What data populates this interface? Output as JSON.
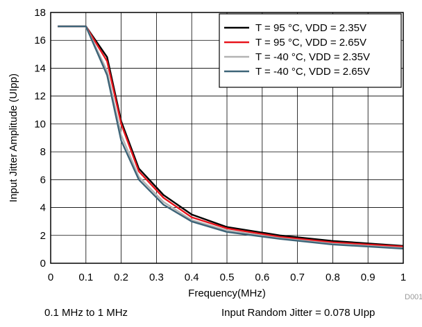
{
  "chart_data": {
    "type": "line",
    "xlabel": "Frequency(MHz)",
    "ylabel": "Input Jitter Amplitude (UIpp)",
    "xlim": [
      0,
      1
    ],
    "ylim": [
      0,
      18
    ],
    "x_ticks": [
      "0",
      "0.1",
      "0.2",
      "0.3",
      "0.4",
      "0.5",
      "0.6",
      "0.7",
      "0.8",
      "0.9",
      "1"
    ],
    "y_ticks": [
      "0",
      "2",
      "4",
      "6",
      "8",
      "10",
      "12",
      "14",
      "16",
      "18"
    ],
    "grid": true,
    "legend_position": "top-right",
    "figure_code": "D001",
    "series": [
      {
        "name": "T = 95 °C, VDD = 2.35V",
        "color": "#000000",
        "x": [
          0.02,
          0.1,
          0.16,
          0.2,
          0.25,
          0.32,
          0.4,
          0.5,
          0.65,
          0.8,
          1.0
        ],
        "y": [
          17,
          17,
          14.8,
          10.2,
          6.8,
          4.9,
          3.5,
          2.6,
          2.0,
          1.6,
          1.25
        ]
      },
      {
        "name": "T = 95 °C, VDD = 2.65V",
        "color": "#e8141c",
        "x": [
          0.02,
          0.1,
          0.16,
          0.2,
          0.25,
          0.32,
          0.4,
          0.5,
          0.65,
          0.8,
          1.0
        ],
        "y": [
          17,
          17,
          14.5,
          10.0,
          6.6,
          4.7,
          3.3,
          2.5,
          1.9,
          1.5,
          1.2
        ]
      },
      {
        "name": "T = -40 °C, VDD = 2.35V",
        "color": "#b3b3b3",
        "x": [
          0.02,
          0.1,
          0.16,
          0.2,
          0.25,
          0.32,
          0.4,
          0.5,
          0.65,
          0.8,
          1.0
        ],
        "y": [
          17,
          17,
          13.8,
          9.2,
          6.2,
          4.4,
          3.1,
          2.35,
          1.8,
          1.4,
          1.1
        ]
      },
      {
        "name": "T = -40 °C, VDD = 2.65V",
        "color": "#3d6478",
        "x": [
          0.02,
          0.1,
          0.16,
          0.2,
          0.25,
          0.32,
          0.4,
          0.5,
          0.65,
          0.8,
          1.0
        ],
        "y": [
          17,
          17,
          13.5,
          8.8,
          6.0,
          4.2,
          3.0,
          2.25,
          1.75,
          1.35,
          1.05
        ]
      }
    ]
  },
  "captions": {
    "left": "0.1 MHz to 1 MHz",
    "right": "Input Random Jitter = 0.078 UIpp"
  }
}
